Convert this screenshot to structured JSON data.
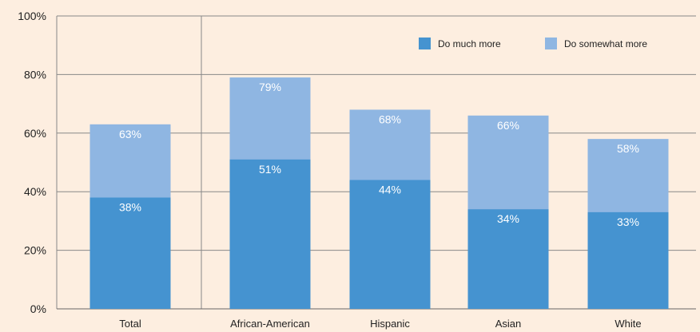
{
  "chart_data": {
    "type": "bar",
    "stacked": "overlay",
    "categories": [
      "Total",
      "African-American",
      "Hispanic",
      "Asian",
      "White"
    ],
    "series": [
      {
        "name": "Do much more",
        "values": [
          38,
          51,
          44,
          34,
          33
        ],
        "color": "#4593d0"
      },
      {
        "name": "Do somewhat more",
        "values": [
          63,
          79,
          68,
          66,
          58
        ],
        "color": "#8fb6e2"
      }
    ],
    "series_display_values": [
      [
        38,
        51,
        44,
        34,
        33
      ],
      [
        63,
        79,
        68,
        66,
        58
      ]
    ],
    "ylim": [
      0,
      100
    ],
    "yticks": [
      0,
      20,
      40,
      60,
      80,
      100
    ],
    "ytick_format": "{v}%",
    "grid": true,
    "legend_placement": "top-right",
    "background_color": "#fdeee0",
    "grid_color": "#888888"
  }
}
